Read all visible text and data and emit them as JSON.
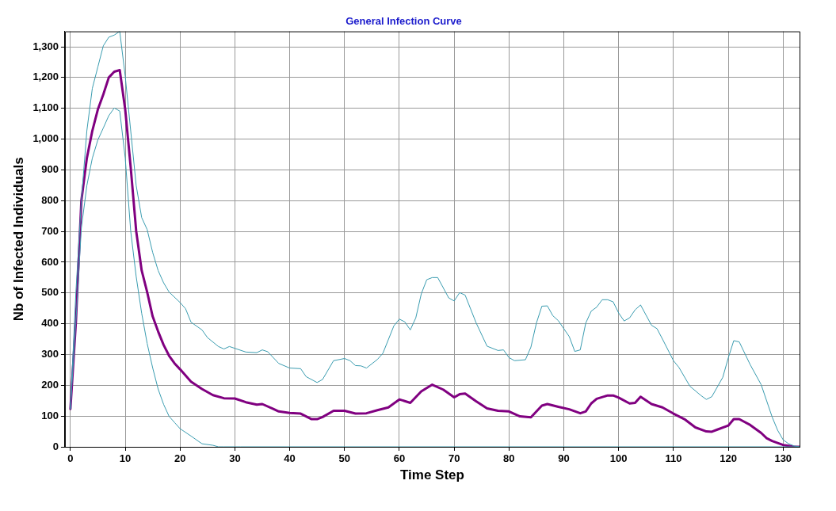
{
  "chart_data": {
    "type": "line",
    "title": "General Infection Curve",
    "xlabel": "Time Step",
    "ylabel": "Nb of Infected Individuals",
    "xlim": [
      -1,
      133
    ],
    "xticks": [
      0,
      10,
      20,
      30,
      40,
      50,
      60,
      70,
      80,
      90,
      100,
      110,
      120,
      130
    ],
    "ylim": [
      0,
      1350
    ],
    "yticks": [
      0,
      100,
      200,
      300,
      400,
      500,
      600,
      700,
      800,
      900,
      {
        "value": 1000,
        "label": "1,000"
      },
      {
        "value": 1100,
        "label": "1,100"
      },
      {
        "value": 1200,
        "label": "1,200"
      },
      {
        "value": 1300,
        "label": "1,300"
      }
    ],
    "grid": true,
    "legend": false,
    "marker": "none",
    "line_style": "solid",
    "series": [
      {
        "color": "#3a9cb0",
        "x": [
          0,
          1,
          2,
          3,
          4,
          5,
          6,
          7,
          8,
          9,
          10,
          11,
          12,
          13,
          14,
          15,
          16,
          17,
          18,
          19,
          20,
          22,
          24,
          26,
          27,
          28,
          30,
          31,
          133
        ],
        "values": [
          123,
          405,
          711,
          849,
          938,
          997,
          1036,
          1076,
          1101,
          1091,
          938,
          701,
          553,
          434,
          336,
          257,
          188,
          138,
          99,
          79,
          59,
          35,
          10,
          5,
          0,
          0,
          0,
          0,
          0
        ]
      },
      {
        "color": "#3a9cb0",
        "x": [
          0,
          1,
          2,
          3,
          4,
          5,
          6,
          7,
          8,
          9,
          10,
          11,
          12,
          13,
          14,
          15,
          16,
          17,
          18,
          20,
          21,
          22,
          24,
          25,
          27,
          28,
          29,
          30,
          32,
          34,
          35,
          36,
          38,
          40,
          42,
          43,
          45,
          46,
          48,
          50,
          51,
          52,
          53,
          54,
          56,
          57,
          59,
          60,
          61,
          62,
          63,
          64,
          65,
          66,
          67,
          69,
          70,
          71,
          72,
          74,
          76,
          78,
          79,
          80,
          81,
          83,
          84,
          85,
          86,
          87,
          88,
          89,
          91,
          92,
          93,
          94,
          95,
          96,
          97,
          98,
          99,
          100,
          101,
          102,
          103,
          104,
          105,
          106,
          107,
          108,
          110,
          111,
          113,
          115,
          116,
          117,
          119,
          120,
          121,
          122,
          124,
          126,
          128,
          129,
          130,
          131,
          132,
          133
        ],
        "values": [
          123,
          503,
          800,
          1027,
          1165,
          1234,
          1303,
          1331,
          1338,
          1350,
          1204,
          1027,
          849,
          745,
          706,
          632,
          573,
          533,
          503,
          469,
          449,
          405,
          380,
          355,
          326,
          318,
          326,
          320,
          308,
          306,
          315,
          309,
          271,
          256,
          254,
          228,
          209,
          219,
          280,
          287,
          280,
          264,
          263,
          256,
          284,
          304,
          393,
          415,
          406,
          380,
          419,
          497,
          543,
          550,
          550,
          484,
          474,
          501,
          493,
          403,
          327,
          313,
          315,
          290,
          280,
          283,
          324,
          402,
          457,
          458,
          426,
          410,
          358,
          310,
          315,
          402,
          441,
          454,
          478,
          478,
          471,
          435,
          409,
          419,
          445,
          461,
          428,
          395,
          384,
          350,
          280,
          258,
          197,
          167,
          154,
          163,
          226,
          289,
          345,
          341,
          267,
          202,
          97,
          54,
          23,
          10,
          3,
          0
        ]
      },
      {
        "color": "#800080",
        "x": [
          0,
          1,
          2,
          3,
          4,
          5,
          6,
          7,
          8,
          9,
          10,
          11,
          12,
          13,
          14,
          15,
          16,
          17,
          18,
          19,
          20,
          22,
          24,
          26,
          28,
          30,
          32,
          34,
          35,
          37,
          38,
          40,
          42,
          44,
          45,
          46,
          48,
          50,
          52,
          54,
          56,
          58,
          60,
          62,
          64,
          66,
          68,
          70,
          71,
          72,
          74,
          76,
          78,
          80,
          82,
          84,
          86,
          87,
          89,
          91,
          93,
          94,
          95,
          96,
          98,
          99,
          100,
          102,
          103,
          104,
          106,
          108,
          110,
          112,
          114,
          116,
          117,
          118,
          120,
          121,
          122,
          124,
          126,
          127,
          128,
          130,
          131,
          132,
          133
        ],
        "values": [
          123,
          405,
          800,
          938,
          1027,
          1096,
          1145,
          1200,
          1219,
          1224,
          1096,
          908,
          701,
          573,
          503,
          424,
          375,
          331,
          296,
          271,
          252,
          212,
          188,
          168,
          158,
          157,
          145,
          137,
          139,
          123,
          115,
          110,
          108,
          90,
          90,
          97,
          117,
          117,
          108,
          109,
          119,
          128,
          154,
          143,
          180,
          202,
          186,
          161,
          171,
          173,
          148,
          125,
          117,
          115,
          99,
          96,
          134,
          139,
          130,
          122,
          109,
          115,
          141,
          156,
          167,
          167,
          160,
          141,
          143,
          163,
          139,
          128,
          108,
          90,
          63,
          50,
          49,
          56,
          69,
          90,
          90,
          71,
          45,
          28,
          19,
          6,
          3,
          0,
          0
        ]
      }
    ]
  }
}
